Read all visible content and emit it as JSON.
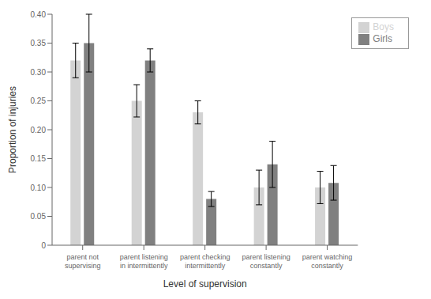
{
  "chart_data": {
    "type": "bar",
    "categories": [
      "parent not\nsupervising",
      "parent listening\nin intermittently",
      "parent checking\nintermittently",
      "parent listening\nconstantly",
      "parent watching\nconstantly"
    ],
    "series": [
      {
        "name": "Boys",
        "color": "#d3d3d3",
        "values": [
          0.32,
          0.25,
          0.23,
          0.1,
          0.1
        ],
        "errors": [
          0.03,
          0.028,
          0.02,
          0.03,
          0.028
        ]
      },
      {
        "name": "Girls",
        "color": "#808080",
        "values": [
          0.35,
          0.32,
          0.08,
          0.14,
          0.108
        ],
        "errors": [
          0.05,
          0.02,
          0.013,
          0.04,
          0.03
        ]
      }
    ],
    "xlabel": "Level of supervision",
    "ylabel": "Proportion of injuries",
    "ylim": [
      0,
      0.4
    ],
    "yticks": [
      0,
      0.05,
      {
        "value": 0.1,
        "label": "0.10"
      },
      0.15,
      {
        "value": 0.2,
        "label": "0.20"
      },
      0.25,
      {
        "value": 0.3,
        "label": "0.30"
      },
      0.35,
      {
        "value": 0.4,
        "label": "0.40"
      }
    ],
    "legend": "upper right",
    "grid": false
  }
}
